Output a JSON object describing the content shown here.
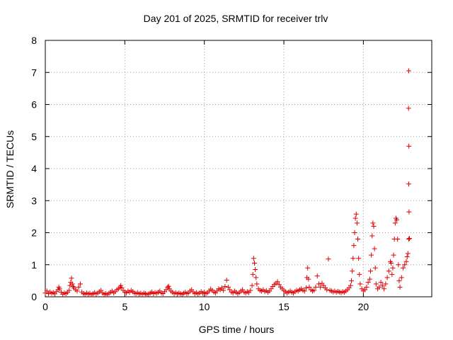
{
  "chart_data": {
    "type": "scatter",
    "title": "Day 201 of 2025, SRMTID for receiver trlv",
    "xlabel": "GPS time / hours",
    "ylabel": "SRMTID / TECUs",
    "xlim": [
      0,
      24.3
    ],
    "ylim": [
      0,
      8
    ],
    "xticks": [
      0,
      5,
      10,
      15,
      20
    ],
    "yticks": [
      0,
      1,
      2,
      3,
      4,
      5,
      6,
      7,
      8
    ],
    "grid": true,
    "marker": "+",
    "color": "#e00000",
    "series": [
      {
        "name": "SRMTID",
        "points": [
          [
            0.0,
            0.12
          ],
          [
            0.1,
            0.18
          ],
          [
            0.2,
            0.1
          ],
          [
            0.3,
            0.15
          ],
          [
            0.4,
            0.11
          ],
          [
            0.5,
            0.13
          ],
          [
            0.6,
            0.09
          ],
          [
            0.7,
            0.16
          ],
          [
            0.8,
            0.22
          ],
          [
            0.85,
            0.3
          ],
          [
            0.9,
            0.25
          ],
          [
            1.0,
            0.14
          ],
          [
            1.1,
            0.08
          ],
          [
            1.2,
            0.12
          ],
          [
            1.3,
            0.1
          ],
          [
            1.4,
            0.14
          ],
          [
            1.5,
            0.2
          ],
          [
            1.55,
            0.35
          ],
          [
            1.6,
            0.45
          ],
          [
            1.65,
            0.58
          ],
          [
            1.7,
            0.4
          ],
          [
            1.75,
            0.32
          ],
          [
            1.8,
            0.28
          ],
          [
            1.9,
            0.22
          ],
          [
            2.0,
            0.18
          ],
          [
            2.1,
            0.3
          ],
          [
            2.2,
            0.4
          ],
          [
            2.3,
            0.15
          ],
          [
            2.4,
            0.1
          ],
          [
            2.5,
            0.08
          ],
          [
            2.6,
            0.12
          ],
          [
            2.7,
            0.09
          ],
          [
            2.8,
            0.11
          ],
          [
            2.9,
            0.07
          ],
          [
            3.0,
            0.1
          ],
          [
            3.1,
            0.13
          ],
          [
            3.2,
            0.09
          ],
          [
            3.3,
            0.12
          ],
          [
            3.4,
            0.16
          ],
          [
            3.5,
            0.2
          ],
          [
            3.6,
            0.12
          ],
          [
            3.7,
            0.08
          ],
          [
            3.8,
            0.1
          ],
          [
            3.9,
            0.07
          ],
          [
            4.0,
            0.11
          ],
          [
            4.1,
            0.14
          ],
          [
            4.2,
            0.18
          ],
          [
            4.3,
            0.12
          ],
          [
            4.4,
            0.16
          ],
          [
            4.5,
            0.22
          ],
          [
            4.6,
            0.25
          ],
          [
            4.7,
            0.3
          ],
          [
            4.75,
            0.35
          ],
          [
            4.8,
            0.28
          ],
          [
            4.9,
            0.2
          ],
          [
            5.0,
            0.15
          ],
          [
            5.1,
            0.12
          ],
          [
            5.2,
            0.18
          ],
          [
            5.3,
            0.14
          ],
          [
            5.4,
            0.2
          ],
          [
            5.5,
            0.16
          ],
          [
            5.6,
            0.12
          ],
          [
            5.7,
            0.1
          ],
          [
            5.8,
            0.13
          ],
          [
            5.9,
            0.09
          ],
          [
            6.0,
            0.11
          ],
          [
            6.1,
            0.08
          ],
          [
            6.2,
            0.12
          ],
          [
            6.3,
            0.1
          ],
          [
            6.4,
            0.07
          ],
          [
            6.5,
            0.09
          ],
          [
            6.6,
            0.12
          ],
          [
            6.7,
            0.15
          ],
          [
            6.8,
            0.1
          ],
          [
            6.9,
            0.13
          ],
          [
            7.0,
            0.11
          ],
          [
            7.1,
            0.14
          ],
          [
            7.2,
            0.18
          ],
          [
            7.3,
            0.12
          ],
          [
            7.4,
            0.1
          ],
          [
            7.5,
            0.16
          ],
          [
            7.6,
            0.22
          ],
          [
            7.7,
            0.3
          ],
          [
            7.75,
            0.33
          ],
          [
            7.8,
            0.25
          ],
          [
            7.9,
            0.18
          ],
          [
            8.0,
            0.14
          ],
          [
            8.1,
            0.1
          ],
          [
            8.2,
            0.13
          ],
          [
            8.3,
            0.09
          ],
          [
            8.4,
            0.12
          ],
          [
            8.5,
            0.1
          ],
          [
            8.6,
            0.08
          ],
          [
            8.7,
            0.11
          ],
          [
            8.8,
            0.14
          ],
          [
            8.9,
            0.1
          ],
          [
            9.0,
            0.12
          ],
          [
            9.1,
            0.18
          ],
          [
            9.2,
            0.22
          ],
          [
            9.3,
            0.15
          ],
          [
            9.4,
            0.1
          ],
          [
            9.5,
            0.13
          ],
          [
            9.6,
            0.09
          ],
          [
            9.7,
            0.12
          ],
          [
            9.8,
            0.16
          ],
          [
            9.9,
            0.11
          ],
          [
            10.0,
            0.14
          ],
          [
            10.1,
            0.1
          ],
          [
            10.2,
            0.13
          ],
          [
            10.3,
            0.18
          ],
          [
            10.4,
            0.24
          ],
          [
            10.5,
            0.2
          ],
          [
            10.6,
            0.15
          ],
          [
            10.7,
            0.12
          ],
          [
            10.8,
            0.18
          ],
          [
            10.9,
            0.25
          ],
          [
            11.0,
            0.22
          ],
          [
            11.1,
            0.28
          ],
          [
            11.2,
            0.2
          ],
          [
            11.3,
            0.32
          ],
          [
            11.4,
            0.52
          ],
          [
            11.5,
            0.3
          ],
          [
            11.6,
            0.22
          ],
          [
            11.7,
            0.15
          ],
          [
            11.8,
            0.12
          ],
          [
            11.9,
            0.18
          ],
          [
            12.0,
            0.14
          ],
          [
            12.1,
            0.1
          ],
          [
            12.2,
            0.13
          ],
          [
            12.3,
            0.18
          ],
          [
            12.4,
            0.22
          ],
          [
            12.5,
            0.15
          ],
          [
            12.6,
            0.12
          ],
          [
            12.7,
            0.16
          ],
          [
            12.8,
            0.13
          ],
          [
            12.9,
            0.2
          ],
          [
            13.0,
            0.35
          ],
          [
            13.05,
            0.7
          ],
          [
            13.1,
            1.2
          ],
          [
            13.15,
            1.05
          ],
          [
            13.2,
            0.85
          ],
          [
            13.25,
            0.6
          ],
          [
            13.3,
            0.4
          ],
          [
            13.4,
            0.25
          ],
          [
            13.5,
            0.2
          ],
          [
            13.6,
            0.18
          ],
          [
            13.7,
            0.22
          ],
          [
            13.8,
            0.16
          ],
          [
            13.9,
            0.19
          ],
          [
            14.0,
            0.14
          ],
          [
            14.1,
            0.18
          ],
          [
            14.2,
            0.25
          ],
          [
            14.3,
            0.32
          ],
          [
            14.4,
            0.38
          ],
          [
            14.5,
            0.42
          ],
          [
            14.6,
            0.47
          ],
          [
            14.7,
            0.38
          ],
          [
            14.8,
            0.3
          ],
          [
            14.9,
            0.25
          ],
          [
            15.0,
            0.2
          ],
          [
            15.1,
            0.16
          ],
          [
            15.2,
            0.12
          ],
          [
            15.3,
            0.15
          ],
          [
            15.4,
            0.18
          ],
          [
            15.5,
            0.14
          ],
          [
            15.6,
            0.12
          ],
          [
            15.7,
            0.16
          ],
          [
            15.8,
            0.2
          ],
          [
            15.9,
            0.18
          ],
          [
            16.0,
            0.22
          ],
          [
            16.1,
            0.25
          ],
          [
            16.2,
            0.2
          ],
          [
            16.3,
            0.18
          ],
          [
            16.4,
            0.28
          ],
          [
            16.45,
            0.6
          ],
          [
            16.5,
            0.9
          ],
          [
            16.55,
            0.55
          ],
          [
            16.6,
            0.3
          ],
          [
            16.7,
            0.22
          ],
          [
            16.8,
            0.18
          ],
          [
            16.9,
            0.2
          ],
          [
            17.0,
            0.3
          ],
          [
            17.1,
            0.65
          ],
          [
            17.2,
            0.4
          ],
          [
            17.3,
            0.3
          ],
          [
            17.4,
            0.42
          ],
          [
            17.5,
            0.35
          ],
          [
            17.6,
            0.28
          ],
          [
            17.7,
            0.22
          ],
          [
            17.8,
            1.18
          ],
          [
            17.9,
            0.2
          ],
          [
            18.0,
            0.18
          ],
          [
            18.1,
            0.15
          ],
          [
            18.2,
            0.18
          ],
          [
            18.3,
            0.14
          ],
          [
            18.4,
            0.17
          ],
          [
            18.5,
            0.15
          ],
          [
            18.6,
            0.13
          ],
          [
            18.7,
            0.16
          ],
          [
            18.8,
            0.14
          ],
          [
            18.9,
            0.18
          ],
          [
            19.0,
            0.22
          ],
          [
            19.1,
            0.28
          ],
          [
            19.2,
            0.35
          ],
          [
            19.25,
            0.5
          ],
          [
            19.3,
            0.8
          ],
          [
            19.35,
            1.2
          ],
          [
            19.4,
            1.6
          ],
          [
            19.45,
            2.0
          ],
          [
            19.5,
            2.45
          ],
          [
            19.55,
            2.58
          ],
          [
            19.6,
            2.3
          ],
          [
            19.65,
            1.8
          ],
          [
            19.7,
            1.2
          ],
          [
            19.75,
            0.7
          ],
          [
            19.8,
            0.4
          ],
          [
            19.9,
            0.25
          ],
          [
            20.0,
            0.18
          ],
          [
            20.1,
            0.22
          ],
          [
            20.2,
            0.3
          ],
          [
            20.3,
            0.45
          ],
          [
            20.4,
            0.55
          ],
          [
            20.45,
            0.8
          ],
          [
            20.5,
            1.3
          ],
          [
            20.55,
            1.9
          ],
          [
            20.6,
            2.3
          ],
          [
            20.65,
            2.2
          ],
          [
            20.7,
            1.5
          ],
          [
            20.75,
            0.9
          ],
          [
            20.8,
            0.4
          ],
          [
            20.9,
            0.25
          ],
          [
            21.0,
            0.3
          ],
          [
            21.1,
            0.45
          ],
          [
            21.2,
            0.35
          ],
          [
            21.3,
            0.25
          ],
          [
            21.4,
            0.4
          ],
          [
            21.5,
            0.6
          ],
          [
            21.6,
            0.8
          ],
          [
            21.7,
            1.1
          ],
          [
            21.75,
            1.05
          ],
          [
            21.8,
            0.7
          ],
          [
            21.85,
            0.9
          ],
          [
            21.9,
            1.3
          ],
          [
            21.95,
            1.8
          ],
          [
            22.0,
            2.3
          ],
          [
            22.05,
            2.45
          ],
          [
            22.1,
            2.4
          ],
          [
            22.15,
            1.8
          ],
          [
            22.2,
            1.0
          ],
          [
            22.25,
            0.5
          ],
          [
            22.3,
            0.3
          ],
          [
            22.4,
            0.6
          ],
          [
            22.5,
            0.9
          ],
          [
            22.6,
            1.0
          ],
          [
            22.7,
            1.1
          ],
          [
            22.75,
            1.25
          ],
          [
            22.8,
            1.35
          ],
          [
            22.85,
            1.8
          ],
          [
            22.9,
            1.82
          ],
          [
            22.87,
            2.65
          ],
          [
            22.85,
            3.52
          ],
          [
            22.86,
            4.7
          ],
          [
            22.84,
            5.88
          ],
          [
            22.85,
            7.05
          ]
        ]
      }
    ]
  }
}
